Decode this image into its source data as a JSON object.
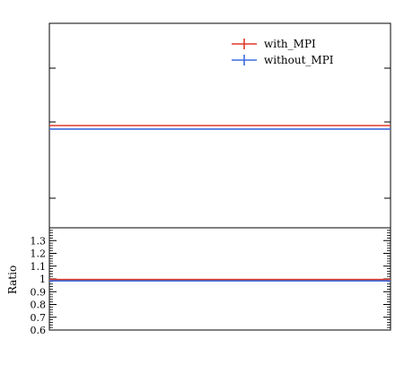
{
  "chart_data": [
    {
      "type": "line",
      "panel": "main",
      "series": [
        {
          "name": "with_MPI",
          "color": "#e03a2b",
          "x": [
            0,
            1
          ],
          "y": [
            1.0,
            1.0
          ]
        },
        {
          "name": "without_MPI",
          "color": "#3b6de0",
          "x": [
            0,
            1
          ],
          "y": [
            0.985,
            0.985
          ]
        }
      ],
      "legend_position": "top-right",
      "grid": false
    },
    {
      "type": "line",
      "panel": "ratio",
      "ylabel": "Ratio",
      "ylim": [
        0.6,
        1.4
      ],
      "yticks": [
        0.6,
        0.7,
        0.8,
        0.9,
        1.0,
        1.1,
        1.2,
        1.3
      ],
      "ytick_labels": [
        "0.6",
        "0.7",
        "0.8",
        "0.9",
        "1",
        "1.1",
        "1.2",
        "1.3"
      ],
      "series": [
        {
          "name": "with_MPI",
          "color": "#e03a2b",
          "x": [
            0,
            1
          ],
          "y": [
            0.995,
            0.995
          ]
        },
        {
          "name": "without_MPI",
          "color": "#3b6de0",
          "x": [
            0,
            1
          ],
          "y": [
            0.985,
            0.985
          ]
        }
      ],
      "grid": false
    }
  ]
}
